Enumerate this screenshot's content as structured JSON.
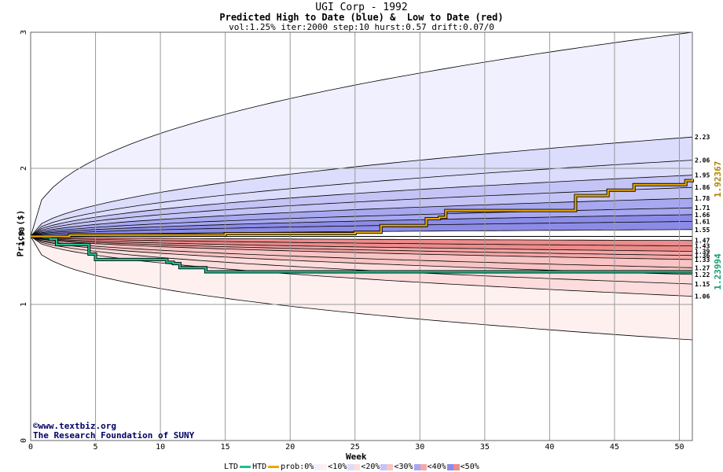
{
  "header": {
    "title": "UGI Corp - 1992",
    "subtitle": "Predicted High to Date (blue) &  Low to Date (red)",
    "params": "vol:1.25% iter:2000 step:10 hurst:0.57 drift:0.07/0"
  },
  "credit": {
    "line1": "©www.textbiz.org",
    "line2": "The Research Foundation of SUNY"
  },
  "legend": {
    "ltd": "LTD",
    "htd": "HTD",
    "prob": "prob:0%",
    "b10": "<10%",
    "b20": "<20%",
    "b30": "<30%",
    "b40": "<40%",
    "b50": "<50%"
  },
  "colors": {
    "plot_bg": "#ffffff",
    "grid": "#999999",
    "htd_line": "#e8a800",
    "ltd_line": "#20c090",
    "blue_bands": [
      "#f0f0ff",
      "#dcdcfc",
      "#c4c4f6",
      "#a8a8f0",
      "#8c8ce8"
    ],
    "red_bands": [
      "#fff0f0",
      "#fcdcdc",
      "#f8c4c4",
      "#f4a8a8",
      "#ee8c8c"
    ]
  },
  "chart_data": {
    "type": "area",
    "title": "UGI Corp - 1992",
    "xlabel": "Week",
    "ylabel": "Price ($)",
    "xlim": [
      0,
      51
    ],
    "ylim": [
      0,
      3
    ],
    "x_ticks": [
      0,
      5,
      10,
      15,
      20,
      25,
      30,
      35,
      40,
      45,
      50
    ],
    "y_ticks": [
      0,
      1,
      2,
      3
    ],
    "start_price": 1.5,
    "start_label": "1.50",
    "high_quantile_end_values": [
      2.23,
      2.06,
      1.95,
      1.86,
      1.78,
      1.71,
      1.66,
      1.61,
      1.55
    ],
    "high_quantile_labels": [
      "2.23",
      "2.06",
      "1.95",
      "1.86",
      "1.78",
      "1.71",
      "1.66",
      "1.61",
      "1.55"
    ],
    "low_quantile_end_values": [
      1.47,
      1.43,
      1.39,
      1.36,
      1.33,
      1.27,
      1.22,
      1.15,
      1.06
    ],
    "low_quantile_labels": [
      "1.47",
      "1.43",
      "1.39",
      "1.36",
      "1.33",
      "1.27",
      "1.22",
      "1.15",
      "1.06"
    ],
    "max_envelope_end": 3.0,
    "min_envelope_end": 0.74,
    "htd_series": {
      "name": "HTD",
      "x": [
        0,
        1,
        2,
        3,
        5,
        10,
        15,
        20,
        25,
        26.5,
        27,
        30,
        30.5,
        31.5,
        32,
        35,
        40,
        41.5,
        42,
        44,
        44.5,
        46,
        46.5,
        49,
        50,
        50.5,
        51
      ],
      "y": [
        1.5,
        1.5,
        1.5,
        1.51,
        1.51,
        1.51,
        1.52,
        1.52,
        1.53,
        1.53,
        1.58,
        1.58,
        1.63,
        1.64,
        1.69,
        1.69,
        1.69,
        1.69,
        1.8,
        1.8,
        1.84,
        1.84,
        1.88,
        1.88,
        1.88,
        1.91,
        1.92
      ],
      "end_label": "1.92367"
    },
    "ltd_series": {
      "name": "LTD",
      "x": [
        0,
        1,
        1.5,
        2,
        4,
        4.5,
        5,
        10,
        10.5,
        11,
        11.5,
        13,
        13.5,
        20,
        30,
        40,
        50,
        51
      ],
      "y": [
        1.5,
        1.49,
        1.48,
        1.44,
        1.44,
        1.37,
        1.33,
        1.33,
        1.31,
        1.3,
        1.27,
        1.27,
        1.24,
        1.24,
        1.24,
        1.24,
        1.24,
        1.24
      ],
      "end_label": "1.23994"
    }
  }
}
